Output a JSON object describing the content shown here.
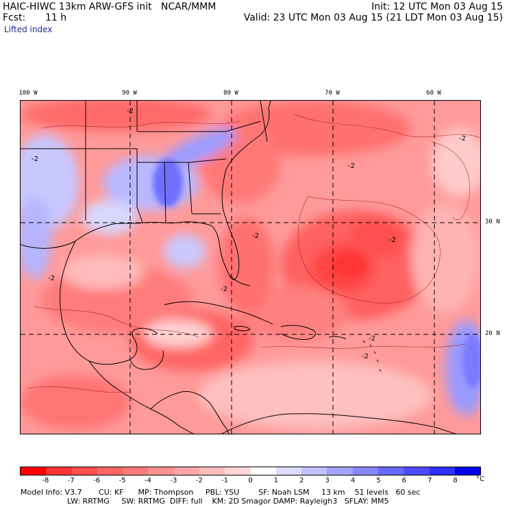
{
  "header": {
    "left_line1": "HAIC-HIWC 13km ARW-GFS init   NCAR/MMM",
    "left_line2_label": "Fcst:",
    "left_line2_value": "11 h",
    "field_name": "Lifted index",
    "init": "Init: 12 UTC Mon 03 Aug 15",
    "valid": "Valid: 23 UTC Mon 03 Aug 15 (21 LDT Mon 03 Aug 15)"
  },
  "map": {
    "lon_labels": [
      "100 W",
      "90 W",
      "80 W",
      "70 W",
      "60 W"
    ],
    "lat_labels": [
      "30 N",
      "20 N"
    ],
    "contour_labels": [
      "-2",
      "-2",
      "-2",
      "-2",
      "-2",
      "-2",
      "-2",
      "-2",
      "-2",
      "-2"
    ]
  },
  "colorbar": {
    "unit": "°C",
    "ticks": [
      "-8",
      "-7",
      "-6",
      "-5",
      "-4",
      "-3",
      "-2",
      "-1",
      "0",
      "1",
      "2",
      "3",
      "4",
      "5",
      "6",
      "7",
      "8"
    ],
    "colors": [
      "#ff0000",
      "#ff3333",
      "#ff4f4f",
      "#ff6565",
      "#ff7b7b",
      "#ff9191",
      "#ffa7a7",
      "#ffbdbd",
      "#ffd7d7",
      "#ffffff",
      "#dcdcff",
      "#c0c0ff",
      "#a3a3ff",
      "#8686ff",
      "#6969ff",
      "#4c4cff",
      "#2f2fff",
      "#0000e6"
    ]
  },
  "footer": {
    "line1": "Model Info: V3.7       CU: KF      MP: Thompson     PBL: YSU        SF: Noah LSM     13 km    51 levels   60 sec",
    "line2": "LW: RRTMG     SW: RRTMG  DIFF: full    KM: 2D Smagor DAMP: Rayleigh3   SFLAY: MM5"
  }
}
